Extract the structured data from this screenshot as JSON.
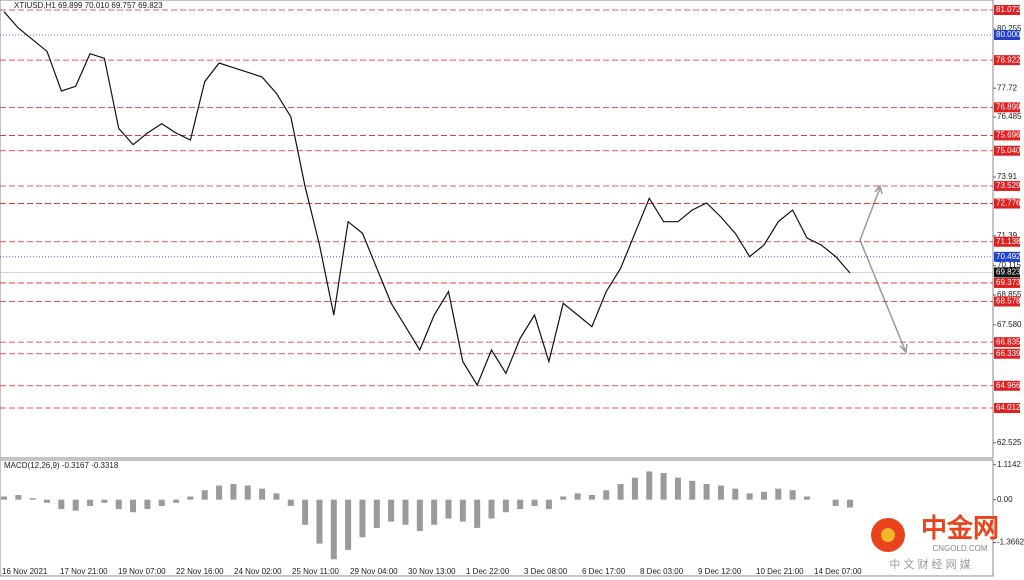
{
  "chart_data": {
    "type": "line",
    "title": "XTIUSD,H1  69.899 70.010 69.757 69.823",
    "x_labels": [
      "16 Nov 2021",
      "17 Nov 21:00",
      "19 Nov 07:00",
      "22 Nov 16:00",
      "24 Nov 02:00",
      "25 Nov 11:00",
      "29 Nov 04:00",
      "30 Nov 13:00",
      "1 Dec 22:00",
      "3 Dec 08:00",
      "6 Dec 17:00",
      "8 Dec 03:00",
      "9 Dec 12:00",
      "10 Dec 21:00",
      "14 Dec 07:00"
    ],
    "series": [
      {
        "name": "XTIUSD",
        "color": "#111111",
        "values": [
          81.0,
          80.3,
          79.8,
          79.3,
          77.6,
          77.8,
          79.2,
          79.0,
          76.0,
          75.3,
          75.8,
          76.2,
          75.8,
          75.5,
          78.0,
          78.8,
          78.6,
          78.4,
          78.2,
          77.5,
          76.5,
          73.5,
          71.0,
          68.0,
          72.0,
          71.5,
          70.0,
          68.5,
          67.5,
          66.5,
          68.0,
          69.0,
          66.0,
          65.0,
          66.5,
          65.5,
          67.0,
          68.0,
          66.0,
          68.5,
          68.0,
          67.5,
          69.0,
          70.0,
          71.5,
          73.0,
          72.0,
          72.0,
          72.5,
          72.8,
          72.2,
          71.5,
          70.5,
          71.0,
          72.0,
          72.5,
          71.3,
          71.0,
          70.5,
          69.8
        ]
      }
    ],
    "ylim": [
      61.87,
      81.5
    ],
    "yticks": [
      80.255,
      77.72,
      76.485,
      73.91,
      71.39,
      70.115,
      68.855,
      {
        "value": 67.58,
        "label": "67.580"
      },
      62.525
    ],
    "levels_red": [
      81.072,
      78.922,
      76.899,
      75.696,
      {
        "value": 75.04,
        "label": "75.040"
      },
      73.529,
      72.776,
      71.138,
      69.373,
      68.578,
      66.835,
      66.339,
      64.966,
      64.012
    ],
    "levels_blue": [
      {
        "value": 80.0,
        "label": "80.000"
      },
      70.492
    ],
    "current_price": 69.823,
    "macd": {
      "label": "MACD(12,26,9) -0.3167 -0.3318",
      "ylim": [
        -2.4,
        1.2
      ],
      "yticks": [
        1.1142,
        {
          "value": 0,
          "label": "0.00"
        },
        -1.3662
      ],
      "values": [
        0.1,
        0.15,
        0.05,
        -0.1,
        -0.3,
        -0.35,
        -0.2,
        -0.1,
        -0.3,
        -0.4,
        -0.3,
        -0.2,
        -0.1,
        0.1,
        0.3,
        0.45,
        0.5,
        0.45,
        0.35,
        0.2,
        -0.2,
        -0.8,
        -1.4,
        -1.9,
        -1.6,
        -1.2,
        -0.9,
        -0.7,
        -0.8,
        -1.0,
        -0.8,
        -0.6,
        -0.7,
        -0.9,
        -0.6,
        -0.4,
        -0.3,
        -0.2,
        -0.3,
        0.1,
        0.2,
        0.15,
        0.3,
        0.5,
        0.7,
        0.9,
        0.85,
        0.7,
        0.6,
        0.5,
        0.45,
        0.35,
        0.2,
        0.25,
        0.35,
        0.3,
        0.1,
        0.0,
        -0.2,
        -0.25
      ]
    },
    "watermark": {
      "brand": "中金网",
      "site": "CNGOLD.COM",
      "slogan": "中 文 财 经 网 媒"
    }
  }
}
